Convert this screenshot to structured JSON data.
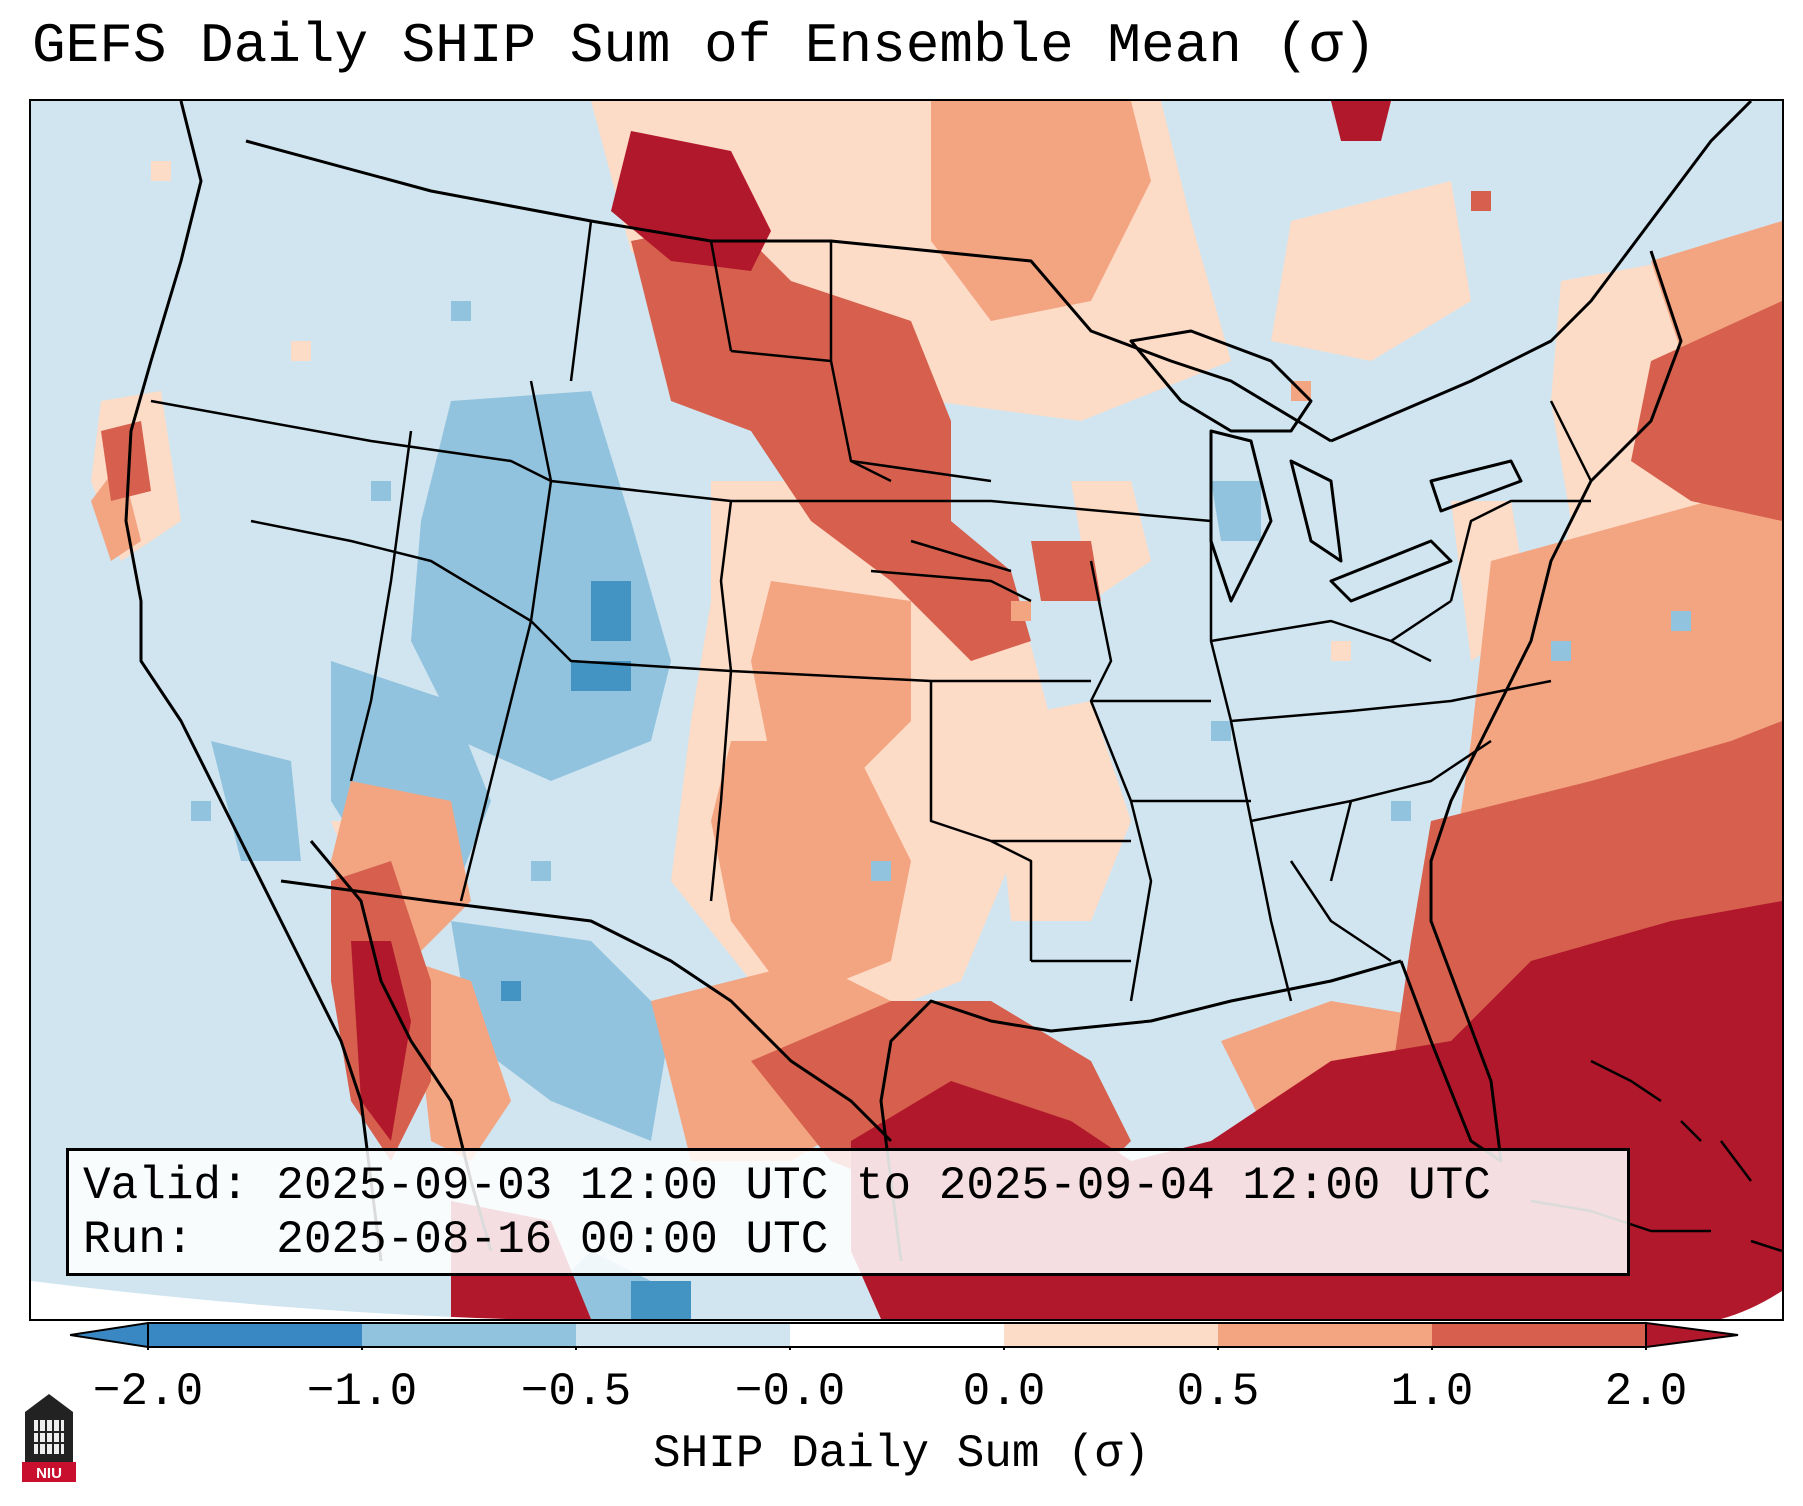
{
  "title": "GEFS Daily SHIP Sum of Ensemble Mean (σ)",
  "info": {
    "valid": "Valid: 2025-09-03 12:00 UTC to 2025-09-04 12:00 UTC",
    "run": "Run:   2025-08-16 00:00 UTC"
  },
  "colorbar": {
    "label": "SHIP Daily Sum (σ)",
    "ticks": [
      "−2.0",
      "−1.0",
      "−0.5",
      "−0.0",
      "0.0",
      "0.5",
      "1.0",
      "2.0"
    ],
    "colors": [
      "#3a88c3",
      "#92c3de",
      "#d1e5f0",
      "#ffffff",
      "#fcdbc7",
      "#f3a582",
      "#d6604d",
      "#b2182b"
    ]
  },
  "logo": {
    "text": "NIU"
  }
}
